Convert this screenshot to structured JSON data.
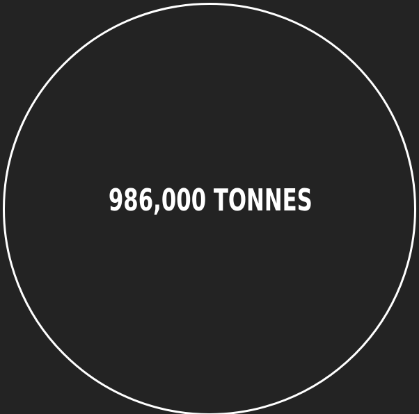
{
  "stat": {
    "value_text": "986,000 TONNES"
  },
  "colors": {
    "background": "#232323",
    "ring": "#ffffff",
    "text": "#ffffff"
  }
}
